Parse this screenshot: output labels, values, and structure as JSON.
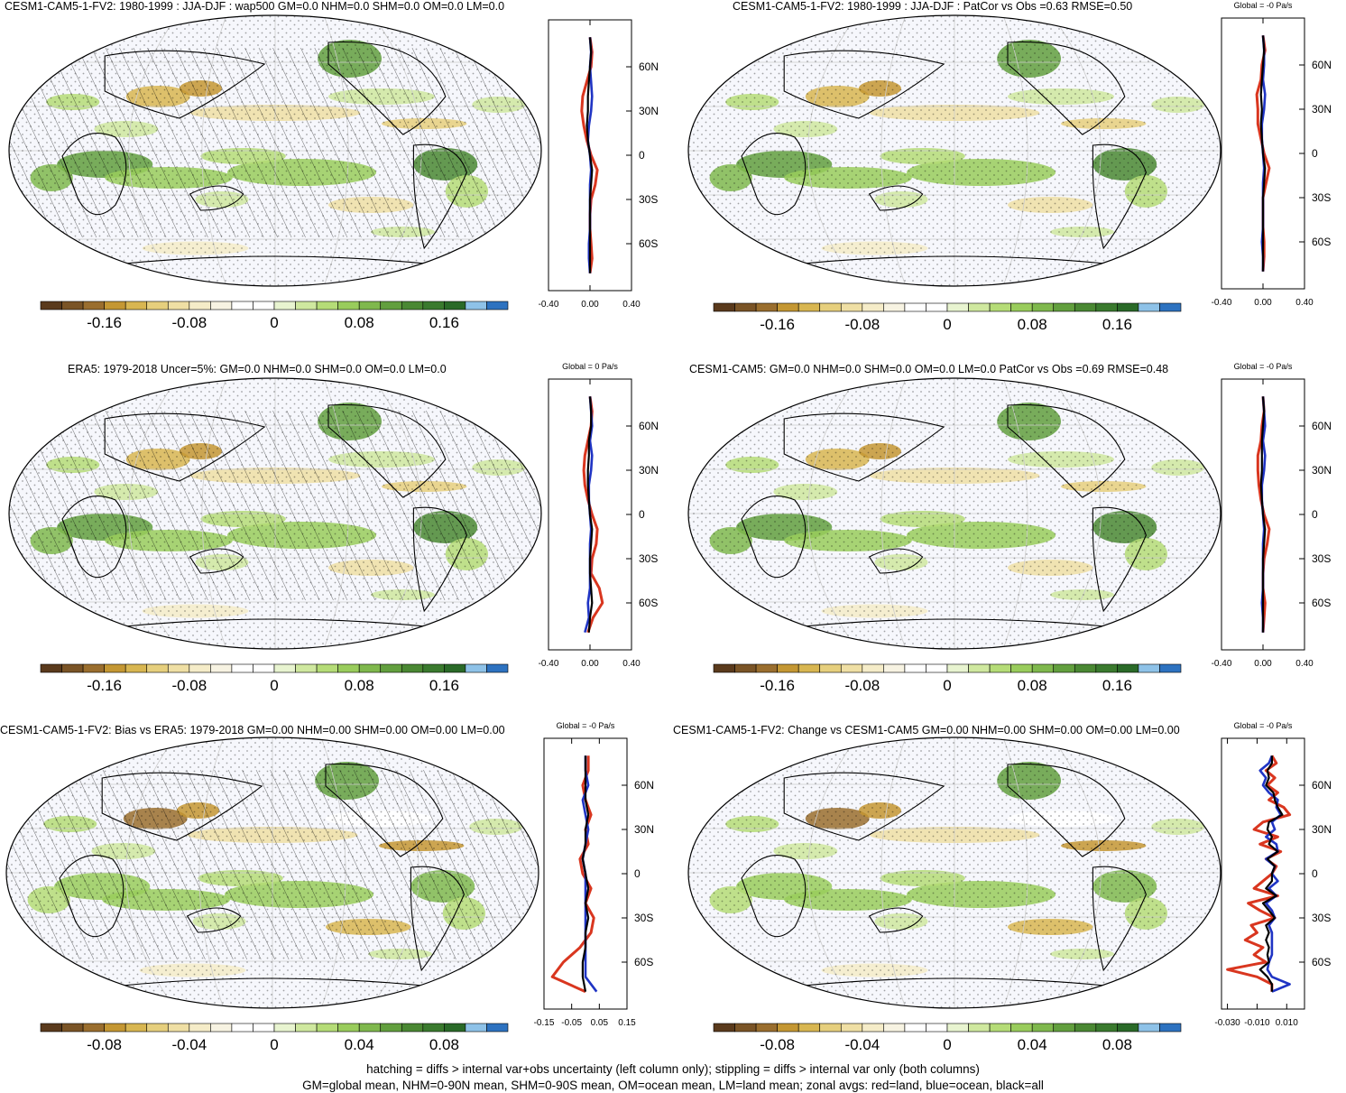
{
  "palette": [
    "#5a3a1c",
    "#7a5426",
    "#9a6e2e",
    "#c49733",
    "#d8b651",
    "#e6cf7d",
    "#efdfa4",
    "#f5ecc8",
    "#f7f3e2",
    "#ffffff",
    "#ffffff",
    "#e8f4d0",
    "#cfe89f",
    "#b5dc77",
    "#99cc5c",
    "#7fb84d",
    "#629f3e",
    "#4a8833",
    "#3a7a2e",
    "#2a6a28",
    "#8ec2e8",
    "#2d72c0"
  ],
  "colors": {
    "land": "#d9361f",
    "ocean": "#1f34c4",
    "all": "#000000"
  },
  "footer": {
    "line1": "hatching = diffs > internal var+obs uncertainty (left column only); stippling = diffs > internal var only (both columns)",
    "line2": "GM=global mean, NHM=0-90N mean, SHM=0-90S mean, OM=ocean mean, LM=land mean; zonal avgs: red=land, blue=ocean, black=all"
  },
  "panels": [
    {
      "title": "CESM1-CAM5-1-FV2: 1980-1999 : JJA-DJF : wap500 GM=0.0 NHM=0.0 SHM=0.0 OM=0.0 LM=0.0",
      "hatching": true,
      "stippling": true,
      "colorbar": {
        "ticks": [
          "-0.16",
          "-0.08",
          "0",
          "0.08",
          "0.16"
        ]
      },
      "zonal": {
        "title": "",
        "xticks": [
          "-0.40",
          "0.00",
          "0.40"
        ],
        "xrange": [
          -0.4,
          0.4
        ],
        "ylabels": [
          "60N",
          "30N",
          "0",
          "30S",
          "60S"
        ],
        "lat": [
          80,
          70,
          60,
          50,
          40,
          30,
          20,
          10,
          0,
          -10,
          -20,
          -30,
          -40,
          -50,
          -60,
          -70,
          -80
        ],
        "land": [
          0.0,
          0.02,
          0.01,
          -0.03,
          -0.07,
          -0.08,
          -0.06,
          -0.03,
          0.01,
          0.07,
          0.05,
          0.01,
          0.0,
          0.0,
          0.01,
          0.02,
          0.0
        ],
        "ocean": [
          0.0,
          0.01,
          0.0,
          0.01,
          0.02,
          0.01,
          -0.01,
          -0.02,
          0.0,
          0.01,
          0.0,
          0.0,
          0.0,
          0.0,
          -0.01,
          -0.01,
          0.0
        ],
        "all": [
          0.0,
          0.01,
          0.0,
          -0.01,
          -0.02,
          -0.02,
          -0.03,
          -0.02,
          0.0,
          0.02,
          0.01,
          0.0,
          0.0,
          0.0,
          0.0,
          0.0,
          0.0
        ]
      }
    },
    {
      "title": "CESM1-CAM5-1-FV2: 1980-1999 : JJA-DJF : PatCor vs Obs =0.63 RMSE=0.50",
      "hatching": false,
      "stippling": true,
      "colorbar": {
        "ticks": [
          "-0.16",
          "-0.08",
          "0",
          "0.08",
          "0.16"
        ]
      },
      "zonal": {
        "title": "Global = -0 Pa/s",
        "xticks": [
          "-0.40",
          "0.00",
          "0.40"
        ],
        "xrange": [
          -0.4,
          0.4
        ],
        "ylabels": [
          "60N",
          "30N",
          "0",
          "30S",
          "60S"
        ],
        "lat": [
          80,
          70,
          60,
          50,
          40,
          30,
          20,
          10,
          0,
          -10,
          -20,
          -30,
          -40,
          -50,
          -60,
          -70,
          -80
        ],
        "land": [
          0.0,
          0.02,
          -0.01,
          -0.02,
          -0.06,
          -0.05,
          -0.05,
          -0.02,
          0.01,
          0.06,
          0.03,
          0.0,
          0.0,
          0.0,
          0.01,
          0.01,
          0.0
        ],
        "ocean": [
          0.0,
          0.01,
          0.01,
          0.0,
          0.02,
          0.01,
          -0.01,
          -0.01,
          0.0,
          0.01,
          0.0,
          0.0,
          0.0,
          0.0,
          -0.01,
          0.0,
          0.0
        ],
        "all": [
          0.0,
          0.01,
          0.0,
          -0.01,
          -0.02,
          -0.01,
          -0.02,
          -0.01,
          0.0,
          0.02,
          0.01,
          0.0,
          0.0,
          0.0,
          0.0,
          0.0,
          0.0
        ]
      }
    },
    {
      "title": "ERA5: 1979-2018 Uncer=5%: GM=0.0 NHM=0.0 SHM=0.0 OM=0.0 LM=0.0",
      "hatching": true,
      "stippling": true,
      "colorbar": {
        "ticks": [
          "-0.16",
          "-0.08",
          "0",
          "0.08",
          "0.16"
        ]
      },
      "zonal": {
        "title": "Global = 0 Pa/s",
        "xticks": [
          "-0.40",
          "0.00",
          "0.40"
        ],
        "xrange": [
          -0.4,
          0.4
        ],
        "ylabels": [
          "60N",
          "30N",
          "0",
          "30S",
          "60S"
        ],
        "lat": [
          80,
          70,
          60,
          50,
          40,
          30,
          20,
          10,
          0,
          -10,
          -20,
          -30,
          -40,
          -50,
          -60,
          -70,
          -80
        ],
        "land": [
          0.0,
          0.02,
          0.01,
          -0.02,
          -0.05,
          -0.06,
          -0.05,
          -0.02,
          0.02,
          0.07,
          0.06,
          0.02,
          0.01,
          0.09,
          0.12,
          0.03,
          -0.02
        ],
        "ocean": [
          0.0,
          0.01,
          0.02,
          0.0,
          0.02,
          0.01,
          -0.01,
          -0.01,
          0.0,
          0.01,
          0.0,
          0.0,
          0.0,
          0.0,
          -0.02,
          -0.01,
          -0.05
        ],
        "all": [
          0.0,
          0.01,
          0.01,
          -0.01,
          -0.01,
          -0.02,
          -0.02,
          -0.01,
          0.0,
          0.02,
          0.01,
          0.0,
          0.0,
          0.01,
          0.02,
          0.0,
          -0.01
        ]
      }
    },
    {
      "title": "CESM1-CAM5: GM=0.0 NHM=0.0 SHM=0.0 OM=0.0 LM=0.0 PatCor vs Obs =0.69 RMSE=0.48",
      "hatching": false,
      "stippling": true,
      "colorbar": {
        "ticks": [
          "-0.16",
          "-0.08",
          "0",
          "0.08",
          "0.16"
        ]
      },
      "zonal": {
        "title": "Global = -0 Pa/s",
        "xticks": [
          "-0.40",
          "0.00",
          "0.40"
        ],
        "xrange": [
          -0.4,
          0.4
        ],
        "ylabels": [
          "60N",
          "30N",
          "0",
          "30S",
          "60S"
        ],
        "lat": [
          80,
          70,
          60,
          50,
          40,
          30,
          20,
          10,
          0,
          -10,
          -20,
          -30,
          -40,
          -50,
          -60,
          -70,
          -80
        ],
        "land": [
          0.0,
          0.01,
          -0.01,
          -0.02,
          -0.05,
          -0.05,
          -0.04,
          -0.02,
          0.01,
          0.06,
          0.04,
          0.01,
          0.0,
          0.0,
          0.02,
          0.01,
          0.0
        ],
        "ocean": [
          0.0,
          0.01,
          0.02,
          0.0,
          0.02,
          0.01,
          -0.01,
          -0.01,
          0.0,
          0.01,
          0.0,
          0.0,
          0.0,
          0.0,
          -0.01,
          0.0,
          0.0
        ],
        "all": [
          0.0,
          0.01,
          0.0,
          -0.01,
          -0.01,
          -0.01,
          -0.02,
          -0.01,
          0.0,
          0.02,
          0.01,
          0.0,
          0.0,
          0.0,
          0.0,
          0.0,
          0.0
        ]
      }
    },
    {
      "title": "CESM1-CAM5-1-FV2: Bias vs ERA5: 1979-2018 GM=0.00 NHM=0.00 SHM=0.00 OM=0.00 LM=0.00",
      "hatching": true,
      "stippling": true,
      "colorbar": {
        "ticks": [
          "-0.08",
          "-0.04",
          "0",
          "0.04",
          "0.08"
        ]
      },
      "zonal": {
        "title": "Global = -0 Pa/s",
        "xticks": [
          "-0.15",
          "-0.05",
          "0.05",
          "0.15"
        ],
        "xrange": [
          -0.15,
          0.15
        ],
        "ylabels": [
          "60N",
          "30N",
          "0",
          "30S",
          "60S"
        ],
        "lat": [
          80,
          70,
          60,
          50,
          40,
          30,
          20,
          10,
          0,
          -10,
          -20,
          -30,
          -40,
          -50,
          -60,
          -70,
          -80
        ],
        "land": [
          0.01,
          0.01,
          -0.01,
          0.0,
          0.02,
          0.0,
          0.01,
          -0.02,
          -0.01,
          0.02,
          0.0,
          0.03,
          0.02,
          -0.02,
          -0.08,
          -0.12,
          0.0
        ],
        "ocean": [
          0.0,
          0.0,
          0.01,
          -0.01,
          0.0,
          0.01,
          0.0,
          -0.01,
          0.0,
          0.0,
          0.0,
          0.0,
          0.0,
          0.0,
          0.0,
          0.0,
          0.04
        ],
        "all": [
          0.0,
          0.0,
          0.0,
          0.0,
          0.01,
          0.0,
          0.0,
          -0.01,
          0.0,
          0.01,
          0.0,
          0.01,
          0.0,
          0.0,
          -0.01,
          -0.01,
          0.0
        ]
      }
    },
    {
      "title": "CESM1-CAM5-1-FV2: Change vs CESM1-CAM5 GM=0.00 NHM=0.00 SHM=0.00 OM=0.00 LM=0.00",
      "hatching": false,
      "stippling": true,
      "colorbar": {
        "ticks": [
          "-0.08",
          "-0.04",
          "0",
          "0.04",
          "0.08"
        ]
      },
      "zonal": {
        "title": "Global = -0 Pa/s",
        "xticks": [
          "-0.030",
          "-0.010",
          "0.010"
        ],
        "xrange": [
          -0.034,
          0.022
        ],
        "ylabels": [
          "60N",
          "30N",
          "0",
          "30S",
          "60S"
        ],
        "lat": [
          80,
          75,
          70,
          65,
          60,
          55,
          50,
          45,
          40,
          35,
          30,
          25,
          20,
          15,
          10,
          5,
          0,
          -5,
          -10,
          -15,
          -20,
          -25,
          -30,
          -35,
          -40,
          -45,
          -50,
          -55,
          -60,
          -65,
          -70,
          -75,
          -80
        ],
        "land": [
          0.0,
          0.003,
          -0.004,
          0.002,
          -0.003,
          0.004,
          -0.002,
          0.008,
          0.012,
          -0.006,
          -0.012,
          0.004,
          -0.008,
          0.006,
          -0.004,
          0.003,
          0.0,
          -0.006,
          -0.012,
          0.004,
          -0.016,
          -0.008,
          0.002,
          -0.014,
          -0.01,
          -0.018,
          -0.006,
          -0.012,
          -0.004,
          -0.03,
          -0.01,
          0.0,
          0.0
        ],
        "ocean": [
          0.0,
          -0.002,
          -0.008,
          -0.004,
          -0.006,
          -0.002,
          0.004,
          0.003,
          0.006,
          0.0,
          0.002,
          -0.004,
          0.003,
          0.004,
          -0.004,
          0.002,
          0.0,
          0.004,
          -0.002,
          0.003,
          -0.004,
          0.0,
          0.002,
          -0.002,
          0.0,
          0.0,
          0.0,
          0.0,
          -0.002,
          -0.003,
          0.0,
          0.012,
          0.0
        ],
        "all": [
          0.0,
          0.0,
          -0.003,
          -0.002,
          -0.004,
          0.001,
          0.002,
          0.004,
          0.007,
          -0.002,
          -0.003,
          0.0,
          -0.002,
          0.004,
          -0.003,
          0.002,
          0.0,
          0.0,
          -0.004,
          0.003,
          -0.006,
          -0.002,
          0.002,
          -0.004,
          -0.002,
          -0.004,
          -0.002,
          -0.003,
          -0.002,
          -0.008,
          -0.003,
          0.0,
          0.0
        ]
      }
    }
  ]
}
